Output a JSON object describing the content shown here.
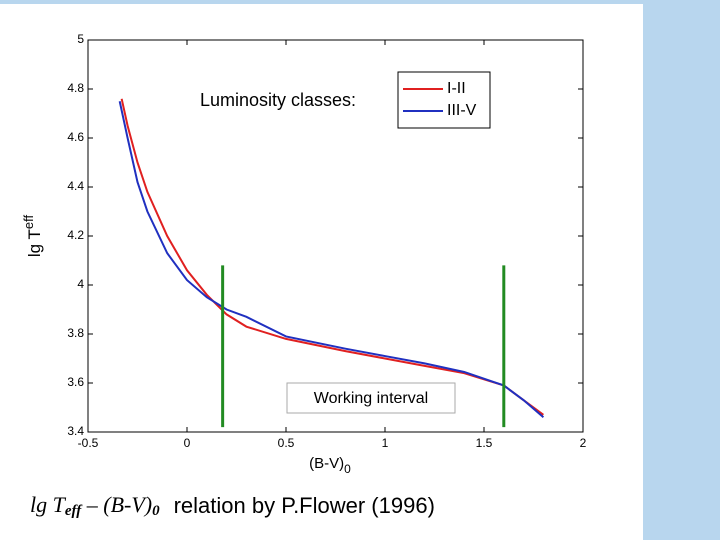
{
  "chart_data": {
    "type": "line",
    "annotation": "Luminosity classes:",
    "ylabel": [
      "lg T",
      "eff"
    ],
    "xlabel": [
      "(B-V)",
      "0"
    ],
    "caption": {
      "formula": [
        "lg T",
        "eff",
        " – (B-V)",
        "0"
      ],
      "text": "relation by P.Flower (1996)"
    },
    "xlim": [
      -0.5,
      2
    ],
    "ylim": [
      3.4,
      5
    ],
    "xticks": [
      -0.5,
      0,
      0.5,
      1,
      1.5,
      2
    ],
    "yticks": [
      3.4,
      3.6,
      3.8,
      4,
      4.2,
      4.4,
      4.6,
      4.8,
      5
    ],
    "series": [
      {
        "name": "I-II",
        "color": "#e02020",
        "x": [
          -0.33,
          -0.3,
          -0.25,
          -0.2,
          -0.1,
          0,
          0.1,
          0.2,
          0.3,
          0.5,
          0.8,
          1.0,
          1.2,
          1.4,
          1.6,
          1.7,
          1.8
        ],
        "values": [
          4.76,
          4.65,
          4.5,
          4.38,
          4.2,
          4.06,
          3.96,
          3.88,
          3.83,
          3.78,
          3.73,
          3.7,
          3.67,
          3.64,
          3.59,
          3.53,
          3.47
        ]
      },
      {
        "name": "III-V",
        "color": "#2030c0",
        "x": [
          -0.34,
          -0.3,
          -0.25,
          -0.2,
          -0.1,
          0,
          0.1,
          0.2,
          0.3,
          0.5,
          0.8,
          1.0,
          1.2,
          1.4,
          1.6,
          1.7,
          1.8
        ],
        "values": [
          4.75,
          4.6,
          4.42,
          4.3,
          4.13,
          4.02,
          3.95,
          3.9,
          3.87,
          3.79,
          3.74,
          3.71,
          3.68,
          3.645,
          3.59,
          3.53,
          3.46
        ]
      }
    ],
    "working_interval": {
      "label": "Working interval",
      "color": "#228b22",
      "x": [
        0.18,
        1.6
      ],
      "y": [
        3.42,
        4.08
      ]
    }
  }
}
